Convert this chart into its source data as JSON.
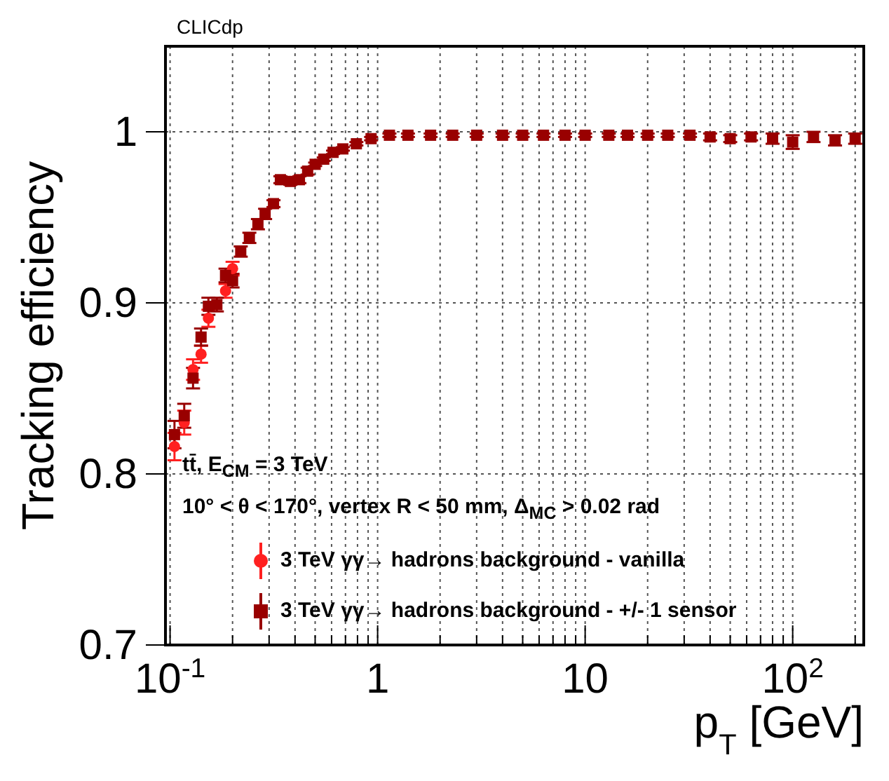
{
  "chart_data": {
    "type": "scatter",
    "title": "CLICdp",
    "xlabel": "p$_{T}$ [GeV]",
    "ylabel": "Tracking efficiency",
    "annotations": [
      "tt̄, E$_{CM}$ = 3 TeV",
      "10° < θ < 170°, vertex R < 50 mm, Δ$_{MC}$ > 0.02 rad"
    ],
    "log": "x",
    "grid": true,
    "legend": "bottom",
    "xlim": [
      0.095,
      220
    ],
    "xticks": [
      {
        "value": 0.1,
        "label": "10$^{-1}$"
      },
      {
        "value": 0.2,
        "label": null
      },
      {
        "value": 0.3,
        "label": null
      },
      {
        "value": 0.4,
        "label": null
      },
      {
        "value": 0.5,
        "label": null
      },
      {
        "value": 0.6,
        "label": null
      },
      {
        "value": 0.7,
        "label": null
      },
      {
        "value": 0.8,
        "label": null
      },
      {
        "value": 0.9,
        "label": null
      },
      1,
      {
        "value": 2,
        "label": null
      },
      {
        "value": 3,
        "label": null
      },
      {
        "value": 4,
        "label": null
      },
      {
        "value": 5,
        "label": null
      },
      {
        "value": 6,
        "label": null
      },
      {
        "value": 7,
        "label": null
      },
      {
        "value": 8,
        "label": null
      },
      {
        "value": 9,
        "label": null
      },
      10,
      {
        "value": 20,
        "label": null
      },
      {
        "value": 30,
        "label": null
      },
      {
        "value": 40,
        "label": null
      },
      {
        "value": 50,
        "label": null
      },
      {
        "value": 60,
        "label": null
      },
      {
        "value": 70,
        "label": null
      },
      {
        "value": 80,
        "label": null
      },
      {
        "value": 90,
        "label": null
      },
      {
        "value": 100,
        "label": "10$^{2}$"
      },
      {
        "value": 200,
        "label": null
      }
    ],
    "ylim": [
      0.7,
      1.05
    ],
    "yticks": [
      0.7,
      0.8,
      0.9,
      1
    ],
    "x": [
      0.105,
      0.117,
      0.129,
      0.141,
      0.153,
      0.168,
      0.185,
      0.2,
      0.219,
      0.241,
      0.265,
      0.287,
      0.315,
      0.34,
      0.38,
      0.42,
      0.46,
      0.5,
      0.55,
      0.61,
      0.68,
      0.79,
      0.93,
      1.14,
      1.4,
      1.8,
      2.3,
      3,
      4,
      5,
      6.3,
      8,
      10,
      13,
      16,
      20,
      25,
      32,
      40,
      50,
      63,
      80,
      100,
      126,
      160,
      200
    ],
    "series": [
      {
        "name": "3 TeV γγ→ hadrons background - vanilla",
        "color": "#ff2020",
        "marker": "circle",
        "values": [
          0.816,
          0.83,
          0.861,
          0.87,
          0.891,
          null,
          0.907,
          0.92,
          null,
          null,
          null,
          null,
          null,
          null,
          null,
          null,
          null,
          null,
          null,
          null,
          null,
          null,
          null,
          null,
          null,
          null,
          null,
          null,
          null,
          null,
          null,
          null,
          null,
          null,
          null,
          null,
          null,
          null,
          null,
          null,
          null,
          null,
          null,
          null,
          null,
          null
        ],
        "errors": [
          0.008,
          0.007,
          0.006,
          0.005,
          0.005,
          null,
          0.004,
          0.004,
          null,
          null,
          null,
          null,
          null,
          null,
          null,
          null,
          null,
          null,
          null,
          null,
          null,
          null,
          null,
          null,
          null,
          null,
          null,
          null,
          null,
          null,
          null,
          null,
          null,
          null,
          null,
          null,
          null,
          null,
          null,
          null,
          null,
          null,
          null,
          null,
          null,
          null
        ]
      },
      {
        "name": "3 TeV γγ→ hadrons background - +/- 1 sensor",
        "color": "#990000",
        "marker": "square",
        "values": [
          0.823,
          0.834,
          0.856,
          0.88,
          0.898,
          0.899,
          0.916,
          0.913,
          0.93,
          0.938,
          0.946,
          0.952,
          0.958,
          0.972,
          0.971,
          0.972,
          0.977,
          0.981,
          0.984,
          0.988,
          0.99,
          0.993,
          0.996,
          0.998,
          0.998,
          0.998,
          0.998,
          0.998,
          0.998,
          0.998,
          0.998,
          0.998,
          0.998,
          0.998,
          0.998,
          0.998,
          0.998,
          0.998,
          0.997,
          0.996,
          0.997,
          0.996,
          0.994,
          0.997,
          0.995,
          0.996
        ],
        "errors": [
          0.008,
          0.007,
          0.006,
          0.005,
          0.005,
          0.004,
          0.004,
          0.004,
          0.003,
          0.003,
          0.003,
          0.003,
          0.002,
          0.002,
          0.002,
          0.002,
          0.002,
          0.001,
          0.001,
          0.001,
          0.001,
          0.001,
          0.001,
          0.001,
          0.001,
          0.001,
          0.001,
          0.001,
          0.001,
          0.001,
          0.001,
          0.001,
          0.001,
          0.001,
          0.001,
          0.001,
          0.001,
          0.001,
          0.002,
          0.002,
          0.002,
          0.003,
          0.004,
          0.003,
          0.003,
          0.003
        ]
      }
    ]
  }
}
